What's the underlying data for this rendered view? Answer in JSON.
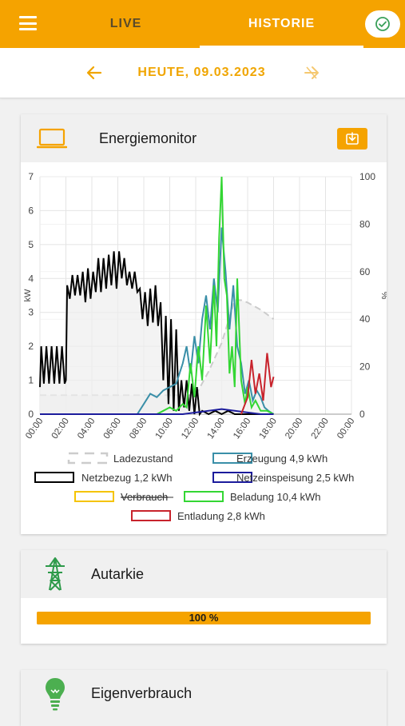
{
  "header": {
    "tabs": [
      {
        "label": "LIVE"
      },
      {
        "label": "HISTORIE"
      }
    ],
    "accent": "#f5a300"
  },
  "date": {
    "label": "HEUTE, 09.03.2023"
  },
  "energy_card": {
    "title": "Energiemonitor"
  },
  "chart_data": {
    "type": "line",
    "y_left": {
      "label": "kW",
      "range": [
        0,
        7
      ],
      "ticks": [
        "0",
        "1",
        "2",
        "3",
        "4",
        "5",
        "6",
        "7"
      ]
    },
    "y_right": {
      "label": "%",
      "range": [
        0,
        100
      ],
      "ticks": [
        "0",
        "20",
        "40",
        "60",
        "80",
        "100"
      ]
    },
    "x_ticks": [
      "00:00",
      "02:00",
      "04:00",
      "06:00",
      "08:00",
      "10:00",
      "12:00",
      "14:00",
      "16:00",
      "18:00",
      "20:00",
      "22:00",
      "00:00"
    ],
    "x_unit": "hours",
    "x_range": [
      0,
      24
    ],
    "grid": true,
    "legend": [
      {
        "name": "Ladezustand",
        "color": "#cccccc",
        "dashed": true,
        "struck": false
      },
      {
        "name": "Erzeugung 4,9 kWh",
        "color": "#3a8fa8",
        "dashed": false,
        "struck": false
      },
      {
        "name": "Netzbezug 1,2 kWh",
        "color": "#000000",
        "dashed": false,
        "struck": false
      },
      {
        "name": "Netzeinspeisung 2,5 kWh",
        "color": "#1c1c9c",
        "dashed": false,
        "struck": false
      },
      {
        "name": "Verbrauch",
        "color": "#f5c400",
        "dashed": false,
        "struck": true
      },
      {
        "name": "Beladung 10,4 kWh",
        "color": "#33d633",
        "dashed": false,
        "struck": false
      },
      {
        "name": "Entladung 2,8 kWh",
        "color": "#c8232c",
        "dashed": false,
        "struck": false
      }
    ],
    "series": [
      {
        "name": "Netzbezug 1,2 kWh",
        "axis": "left",
        "color": "#000000",
        "x": [
          0,
          0.1,
          0.3,
          0.5,
          0.7,
          0.9,
          1.1,
          1.3,
          1.5,
          1.7,
          1.9,
          2.0,
          2.1,
          2.3,
          2.5,
          2.7,
          2.9,
          3.1,
          3.3,
          3.5,
          3.7,
          3.9,
          4.1,
          4.3,
          4.5,
          4.7,
          4.9,
          5.1,
          5.3,
          5.5,
          5.7,
          5.9,
          6.1,
          6.3,
          6.5,
          6.7,
          6.9,
          7.1,
          7.3,
          7.5,
          7.7,
          7.9,
          8.1,
          8.3,
          8.5,
          8.7,
          8.9,
          9.1,
          9.3,
          9.5,
          9.7,
          9.9,
          10.1,
          10.3,
          10.5,
          10.7,
          10.9,
          11.1,
          11.3,
          11.5,
          11.7,
          11.9,
          12.1,
          12.3,
          12.5,
          13.0,
          13.5,
          14.0,
          14.5,
          15.0,
          16.0,
          18.0
        ],
        "y": [
          0.8,
          2.0,
          0.9,
          2.0,
          0.9,
          2.0,
          0.9,
          2.0,
          0.9,
          2.0,
          0.9,
          1.0,
          3.8,
          3.4,
          4.1,
          3.5,
          4.1,
          3.5,
          4.2,
          3.3,
          4.3,
          3.4,
          4.2,
          3.6,
          4.6,
          3.6,
          4.6,
          3.7,
          4.7,
          3.8,
          4.8,
          3.7,
          4.8,
          4.0,
          4.6,
          3.8,
          4.2,
          3.7,
          4.2,
          3.6,
          3.7,
          2.8,
          3.6,
          2.6,
          3.7,
          2.7,
          3.8,
          2.6,
          3.3,
          1.0,
          2.9,
          0.3,
          2.8,
          0.1,
          2.5,
          0.1,
          1.0,
          0.2,
          1.0,
          0.1,
          0.9,
          0.0,
          0.8,
          0.0,
          0.1,
          0.0,
          0.1,
          0.0,
          0.1,
          0.0,
          0.0,
          0.0
        ]
      },
      {
        "name": "Ladezustand",
        "axis": "right",
        "color": "#cccccc",
        "x": [
          0,
          1,
          2,
          3,
          4,
          5,
          6,
          7,
          8,
          9,
          10,
          11,
          12,
          13,
          14,
          15,
          15.5,
          16,
          17,
          18
        ],
        "y": [
          8,
          8,
          8,
          8,
          8,
          8,
          8,
          8,
          8,
          8,
          8,
          8,
          8,
          18,
          30,
          48,
          48,
          47,
          44,
          40
        ]
      },
      {
        "name": "Erzeugung 4,9 kWh",
        "axis": "left",
        "color": "#3a8fa8",
        "x": [
          7.5,
          8.0,
          8.5,
          9.0,
          9.5,
          10.0,
          10.5,
          11.0,
          11.3,
          11.6,
          11.9,
          12.2,
          12.5,
          12.8,
          13.1,
          13.4,
          13.7,
          14.0,
          14.3,
          14.6,
          14.9,
          15.2,
          15.5,
          15.8,
          16.1,
          16.4,
          16.7,
          17.0,
          17.3,
          17.6,
          18.0
        ],
        "y": [
          0.0,
          0.3,
          0.6,
          0.5,
          0.7,
          0.8,
          0.9,
          1.5,
          2.0,
          1.2,
          2.3,
          1.5,
          2.8,
          3.5,
          2.5,
          4.0,
          3.0,
          5.5,
          4.2,
          2.5,
          3.8,
          2.0,
          1.5,
          0.6,
          1.0,
          0.4,
          0.7,
          0.5,
          0.2,
          0.1,
          0.0
        ]
      },
      {
        "name": "Netzeinspeisung 2,5 kWh",
        "axis": "left",
        "color": "#1c1c9c",
        "x": [
          0,
          11,
          12,
          13,
          14,
          15,
          16,
          17,
          18
        ],
        "y": [
          0,
          0,
          0.05,
          0.1,
          0.15,
          0.1,
          0.05,
          0,
          0
        ]
      },
      {
        "name": "Beladung 10,4 kWh",
        "axis": "left",
        "color": "#33d633",
        "x": [
          9.0,
          9.5,
          10.0,
          10.5,
          11.0,
          11.3,
          11.6,
          11.9,
          12.2,
          12.5,
          12.8,
          13.1,
          13.4,
          13.6,
          13.8,
          14.0,
          14.2,
          14.4,
          14.6,
          14.8,
          15.0,
          15.2,
          15.5,
          15.8,
          16.0,
          16.3,
          16.6,
          17.0,
          17.5,
          18.0
        ],
        "y": [
          0.0,
          0.1,
          0.2,
          0.1,
          0.3,
          0.2,
          1.5,
          0.5,
          2.0,
          1.0,
          3.2,
          1.5,
          3.8,
          2.0,
          5.2,
          7.0,
          4.0,
          3.5,
          1.2,
          2.0,
          0.8,
          4.0,
          1.0,
          0.3,
          0.8,
          0.2,
          0.4,
          0.1,
          0.1,
          0.0
        ]
      },
      {
        "name": "Entladung 2,8 kWh",
        "axis": "left",
        "color": "#c8232c",
        "x": [
          15.5,
          16.0,
          16.3,
          16.6,
          16.9,
          17.2,
          17.5,
          17.8,
          18.0
        ],
        "y": [
          0.0,
          0.5,
          1.6,
          0.6,
          1.2,
          0.4,
          1.8,
          0.8,
          1.1
        ]
      }
    ]
  },
  "autarkie": {
    "title": "Autarkie",
    "value": 100,
    "label": "100 %",
    "color": "#f5a300"
  },
  "eigenverbrauch": {
    "title": "Eigenverbrauch"
  }
}
